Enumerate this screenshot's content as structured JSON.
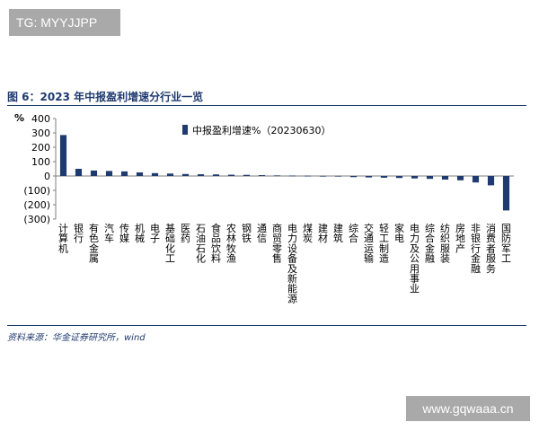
{
  "header": {
    "tag": "TG: MYYJJPP"
  },
  "figure": {
    "title": "图 6：2023 年中报盈利增速分行业一览"
  },
  "footer": {
    "source": "资料来源：华金证券研究所，wind",
    "watermark": "www.gqwaaa.cn"
  },
  "colors": {
    "bar": "#1f3a6e",
    "axis": "#7f7f7f",
    "title": "#1f3a6e"
  },
  "chart_data": {
    "type": "bar",
    "title": "",
    "ylabel": "%",
    "xlabel": "",
    "ylim": [
      -300,
      400
    ],
    "yticks": [
      400,
      300,
      200,
      100,
      0,
      -100,
      -200,
      -300
    ],
    "ytick_labels": [
      "400",
      "300",
      "200",
      "100",
      "0",
      "(100)",
      "(200)",
      "(300)"
    ],
    "legend": {
      "label": "中报盈利增速%（20230630）",
      "position": "top-center"
    },
    "categories": [
      "计算机",
      "银行",
      "有色金属",
      "汽车",
      "传媒",
      "机械",
      "电子",
      "基础化工",
      "医药",
      "石油石化",
      "食品饮料",
      "农林牧渔",
      "钢铁",
      "通信",
      "商贸零售",
      "电力设备及新能源",
      "煤炭",
      "建材",
      "建筑",
      "综合",
      "交通运输",
      "轻工制造",
      "家电",
      "电力及公用事业",
      "综合金融",
      "纺织服装",
      "房地产",
      "非银行金融",
      "消费者服务",
      "国防军工"
    ],
    "values": [
      285,
      50,
      38,
      35,
      32,
      25,
      20,
      17,
      14,
      12,
      11,
      9,
      8,
      6,
      4,
      3,
      2,
      1,
      1,
      -8,
      -10,
      -12,
      -14,
      -17,
      -20,
      -25,
      -30,
      -45,
      -65,
      -240
    ]
  }
}
